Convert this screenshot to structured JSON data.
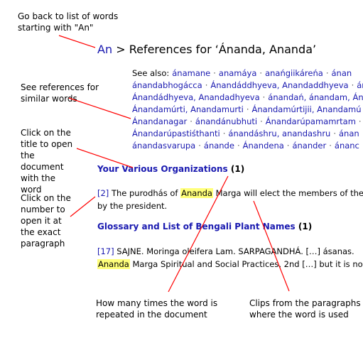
{
  "annotations": {
    "back": "Go back to list of words starting with \"An\"",
    "see_refs": "See references for similar words",
    "click_title": "Click on the title to open the document with the word",
    "click_number": "Click on the number to open it at the exact paragraph",
    "times": "How many times the word is repeated in the document",
    "clips": "Clips from the paragraphs where the word is used"
  },
  "heading": {
    "prefix": "An",
    "separator": ">",
    "title": "References for ‘Ánanda, Ananda’"
  },
  "see_also": {
    "label": "See also:",
    "rows": [
      [
        "ánamane",
        "anamáya",
        "anańgiikáreńa",
        "ánan"
      ],
      [
        "ánandabhogácca",
        "Ánandáddhyeva, Anandaddhyeva",
        "ánan"
      ],
      [
        "Ánandádhyeva, Anandadhyeva",
        "ánandań, ánandam, Án"
      ],
      [
        "Ánandamúrti, Anandamurti",
        "Ánandamúrtijii, Anandamú"
      ],
      [
        "Ánandanagar",
        "ánandánubhuti",
        "Ánandarúpamamrtam",
        "Án"
      ],
      [
        "Ánandarúpastiśthanti",
        "ánandáshru, anandashru",
        "ánan"
      ],
      [
        "ánandasvarupa",
        "ánande",
        "Ánandena",
        "ánander",
        "ánanc"
      ]
    ]
  },
  "results": [
    {
      "title": "Your Various Organizations",
      "count": "(1)",
      "clips": [
        {
          "num": "[2]",
          "before": " The purodhás of ",
          "highlight": "Ananda",
          "after": " Marga will elect the members of the",
          "line2": "by the president."
        }
      ]
    },
    {
      "title": "Glossary and List of Bengali Plant Names",
      "count": "(1)",
      "clips": [
        {
          "num": "[17]",
          "before": " SAJNE. Moringa oleifera Lam. SARPAGANDHÁ. […] ásanas. ",
          "highlight": "",
          "after": "",
          "line2_highlight": "Ananda",
          "line2": " Marga Spiritual and Social Practices, 2nd […] but it is no"
        }
      ]
    }
  ],
  "colors": {
    "link": "#1a1ab0",
    "highlight": "#ffff7a",
    "callout": "#ff0000"
  }
}
